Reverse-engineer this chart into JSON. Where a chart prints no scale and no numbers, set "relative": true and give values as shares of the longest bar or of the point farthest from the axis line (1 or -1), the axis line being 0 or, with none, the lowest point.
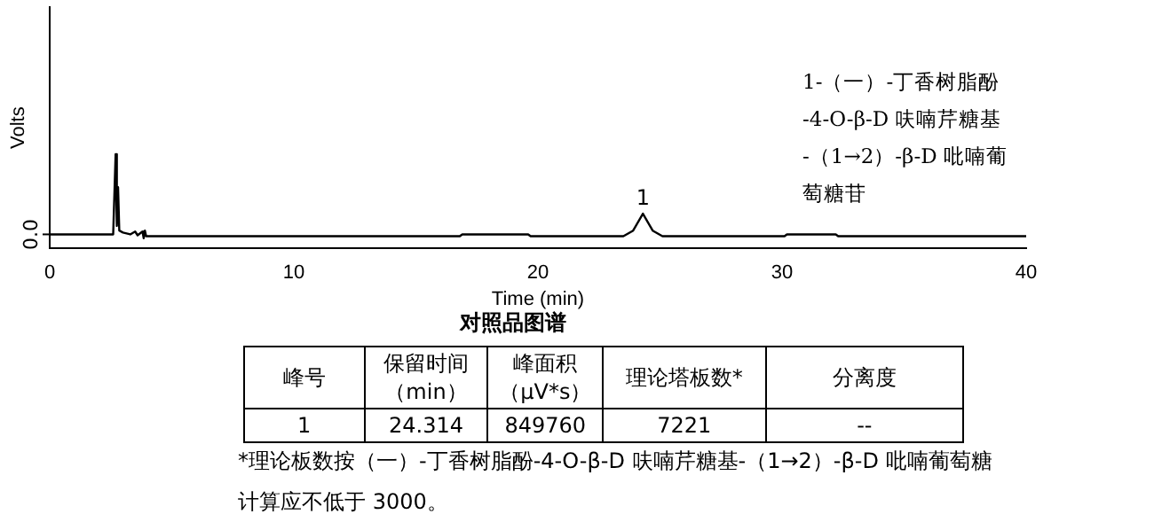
{
  "chart_data": {
    "type": "line",
    "title": "对照品图谱",
    "xlabel": "Time (min)",
    "ylabel": "Volts",
    "relative": true,
    "color": "#000000",
    "x": [
      0,
      2.6,
      2.7,
      2.75,
      2.8,
      2.85,
      3.0,
      3.3,
      3.5,
      3.6,
      3.8,
      3.85,
      3.9,
      3.95,
      4.0,
      16.8,
      16.9,
      19.6,
      19.7,
      23.5,
      23.9,
      24.3,
      24.7,
      25.1,
      30.1,
      30.2,
      32.2,
      32.3,
      40
    ],
    "values": [
      0.15,
      0.15,
      1,
      0.24,
      0.65,
      0.19,
      0.17,
      0.15,
      0.18,
      0.14,
      0.18,
      0.11,
      0.19,
      0.13,
      0.13,
      0.13,
      0.15,
      0.15,
      0.13,
      0.13,
      0.19,
      0.37,
      0.19,
      0.13,
      0.13,
      0.15,
      0.15,
      0.13,
      0.13
    ],
    "xlim": [
      0,
      40
    ],
    "xticks": [
      0,
      10,
      20,
      30,
      40
    ],
    "grid": false,
    "legend": false,
    "marker": "none",
    "line_style": "solid",
    "annotations": [
      "1-（一）-丁香树脂酚",
      "-4-O-β-D 呋喃芹糖基",
      "-（1→2）-β-D 吡喃葡",
      "萄糖苷",
      {
        "text": "1",
        "x": 24.3,
        "y": 0.37
      },
      "0.0",
      "峰号",
      "保留时间（min）",
      "峰面积（μV*s）",
      "理论塔板数*",
      "分离度",
      "1",
      "24.314",
      "849760",
      "7221",
      "--",
      "*理论板数按（一）-丁香树脂酚-4-O-β-D 呋喃芹糖基-（1→2）-β-D 吡喃葡萄糖",
      "计算应不低于 3000。"
    ]
  }
}
